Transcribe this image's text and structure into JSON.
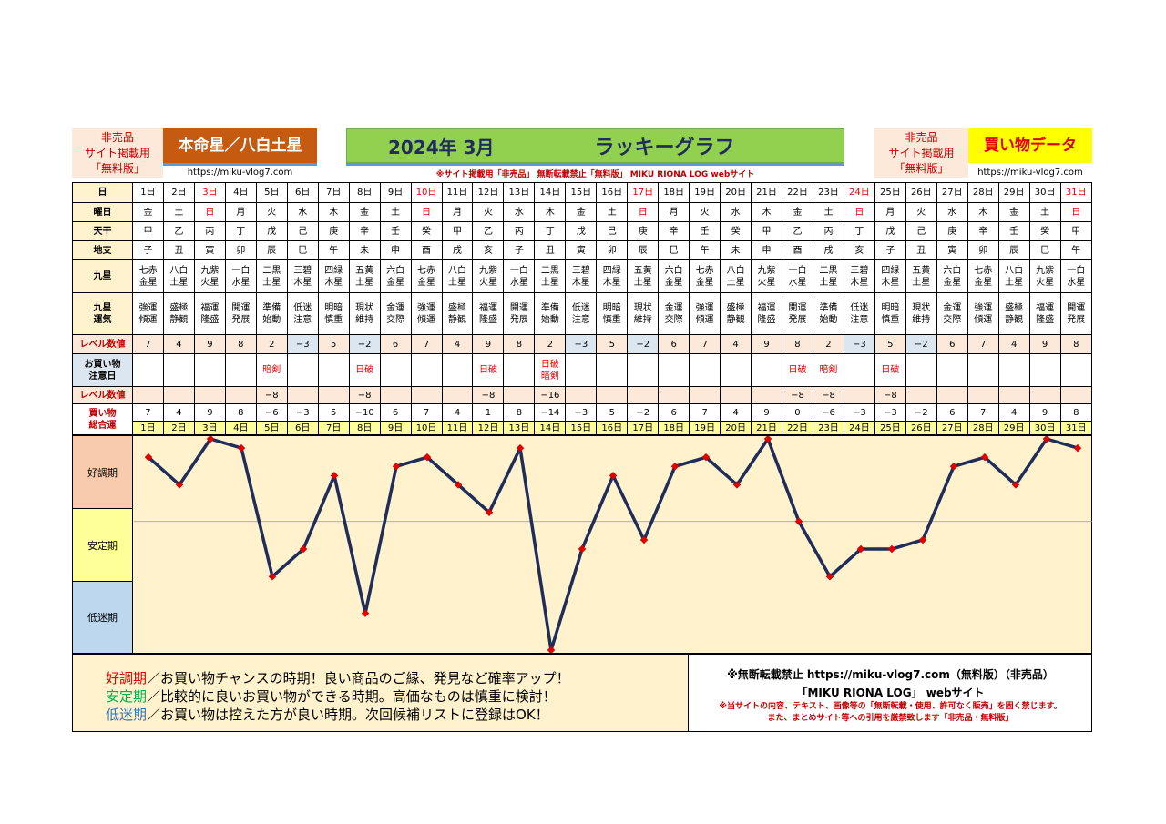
{
  "header": {
    "not_for_sale_left": [
      "非売品",
      "サイト掲載用",
      "「無料版」"
    ],
    "honmei_label": "本命星／八白土星",
    "url_left": "https://miku-vlog7.com",
    "year_month": "2024年 3月",
    "lucky_graph": "ラッキーグラフ",
    "notice": "※サイト掲載用「非売品」 無断転載禁止「無料版」 MIKU RIONA LOG webサイト",
    "not_for_sale_right": [
      "非売品",
      "サイト掲載用",
      "「無料版」"
    ],
    "shopping_data": "買い物データ",
    "url_right": "https://miku-vlog7.com"
  },
  "row_labels": {
    "day": "日",
    "weekday": "曜日",
    "tenkan": "天干",
    "chishi": "地支",
    "kyusei": "九星",
    "kyusei_unki": [
      "九星",
      "運気"
    ],
    "level": "レベル数値",
    "shopping_caution": [
      "お買い物",
      "注意日"
    ],
    "level2": "レベル数値",
    "total": [
      "買い物",
      "総合運"
    ]
  },
  "days": [
    "1日",
    "2日",
    "3日",
    "4日",
    "5日",
    "6日",
    "7日",
    "8日",
    "9日",
    "10日",
    "11日",
    "12日",
    "13日",
    "14日",
    "15日",
    "16日",
    "17日",
    "18日",
    "19日",
    "20日",
    "21日",
    "22日",
    "23日",
    "24日",
    "25日",
    "26日",
    "27日",
    "28日",
    "29日",
    "30日",
    "31日"
  ],
  "weekdays": [
    "金",
    "土",
    "日",
    "月",
    "火",
    "水",
    "木",
    "金",
    "土",
    "日",
    "月",
    "火",
    "水",
    "木",
    "金",
    "土",
    "日",
    "月",
    "火",
    "水",
    "木",
    "金",
    "土",
    "日",
    "月",
    "火",
    "水",
    "木",
    "金",
    "土",
    "日"
  ],
  "tenkan": [
    "甲",
    "乙",
    "丙",
    "丁",
    "戊",
    "己",
    "庚",
    "辛",
    "壬",
    "癸",
    "甲",
    "乙",
    "丙",
    "丁",
    "戊",
    "己",
    "庚",
    "辛",
    "壬",
    "癸",
    "甲",
    "乙",
    "丙",
    "丁",
    "戊",
    "己",
    "庚",
    "辛",
    "壬",
    "癸",
    "甲"
  ],
  "chishi": [
    "子",
    "丑",
    "寅",
    "卯",
    "辰",
    "巳",
    "午",
    "未",
    "申",
    "酉",
    "戌",
    "亥",
    "子",
    "丑",
    "寅",
    "卯",
    "辰",
    "巳",
    "午",
    "未",
    "申",
    "酉",
    "戌",
    "亥",
    "子",
    "丑",
    "寅",
    "卯",
    "辰",
    "巳",
    "午"
  ],
  "kyusei": [
    [
      "七赤",
      "金星"
    ],
    [
      "八白",
      "土星"
    ],
    [
      "九紫",
      "火星"
    ],
    [
      "一白",
      "水星"
    ],
    [
      "二黒",
      "土星"
    ],
    [
      "三碧",
      "木星"
    ],
    [
      "四緑",
      "木星"
    ],
    [
      "五黄",
      "土星"
    ],
    [
      "六白",
      "金星"
    ],
    [
      "七赤",
      "金星"
    ],
    [
      "八白",
      "土星"
    ],
    [
      "九紫",
      "火星"
    ],
    [
      "一白",
      "水星"
    ],
    [
      "二黒",
      "土星"
    ],
    [
      "三碧",
      "木星"
    ],
    [
      "四緑",
      "木星"
    ],
    [
      "五黄",
      "土星"
    ],
    [
      "六白",
      "金星"
    ],
    [
      "七赤",
      "金星"
    ],
    [
      "八白",
      "土星"
    ],
    [
      "九紫",
      "火星"
    ],
    [
      "一白",
      "水星"
    ],
    [
      "二黒",
      "土星"
    ],
    [
      "三碧",
      "木星"
    ],
    [
      "四緑",
      "木星"
    ],
    [
      "五黄",
      "土星"
    ],
    [
      "六白",
      "金星"
    ],
    [
      "七赤",
      "金星"
    ],
    [
      "八白",
      "土星"
    ],
    [
      "九紫",
      "火星"
    ],
    [
      "一白",
      "水星"
    ]
  ],
  "unki": [
    [
      "強運",
      "傾運"
    ],
    [
      "盛極",
      "静観"
    ],
    [
      "福運",
      "隆盛"
    ],
    [
      "開運",
      "発展"
    ],
    [
      "準備",
      "始動"
    ],
    [
      "低迷",
      "注意"
    ],
    [
      "明暗",
      "慎重"
    ],
    [
      "現状",
      "維持"
    ],
    [
      "金運",
      "交際"
    ],
    [
      "強運",
      "傾運"
    ],
    [
      "盛極",
      "静観"
    ],
    [
      "福運",
      "隆盛"
    ],
    [
      "開運",
      "発展"
    ],
    [
      "準備",
      "始動"
    ],
    [
      "低迷",
      "注意"
    ],
    [
      "明暗",
      "慎重"
    ],
    [
      "現状",
      "維持"
    ],
    [
      "金運",
      "交際"
    ],
    [
      "強運",
      "傾運"
    ],
    [
      "盛極",
      "静観"
    ],
    [
      "福運",
      "隆盛"
    ],
    [
      "開運",
      "発展"
    ],
    [
      "準備",
      "始動"
    ],
    [
      "低迷",
      "注意"
    ],
    [
      "明暗",
      "慎重"
    ],
    [
      "現状",
      "維持"
    ],
    [
      "金運",
      "交際"
    ],
    [
      "強運",
      "傾運"
    ],
    [
      "盛極",
      "静観"
    ],
    [
      "福運",
      "隆盛"
    ],
    [
      "開運",
      "発展"
    ]
  ],
  "levels": [
    "7",
    "4",
    "9",
    "8",
    "2",
    "−3",
    "5",
    "−2",
    "6",
    "7",
    "4",
    "9",
    "8",
    "2",
    "−3",
    "5",
    "−2",
    "6",
    "7",
    "4",
    "9",
    "8",
    "2",
    "−3",
    "5",
    "−2",
    "6",
    "7",
    "4",
    "9",
    "8"
  ],
  "caution": [
    [],
    [],
    [],
    [],
    [
      "暗剣"
    ],
    [],
    [],
    [
      "日破"
    ],
    [],
    [],
    [],
    [
      "日破"
    ],
    [],
    [
      "日破",
      "暗剣"
    ],
    [],
    [],
    [],
    [],
    [],
    [],
    [],
    [
      "日破"
    ],
    [
      "暗剣"
    ],
    [],
    [
      "日破"
    ],
    [],
    [],
    [],
    [],
    [],
    []
  ],
  "caution_levels": [
    "",
    "",
    "",
    "",
    "−8",
    "",
    "",
    "−8",
    "",
    "",
    "",
    "−8",
    "",
    "−16",
    "",
    "",
    "",
    "",
    "",
    "",
    "",
    "−8",
    "−8",
    "",
    "−8",
    "",
    "",
    "",
    "",
    "",
    ""
  ],
  "totals": [
    "7",
    "4",
    "9",
    "8",
    "−6",
    "−3",
    "5",
    "−10",
    "6",
    "7",
    "4",
    "1",
    "8",
    "−14",
    "−3",
    "5",
    "−2",
    "6",
    "7",
    "4",
    "9",
    "0",
    "−6",
    "−3",
    "−3",
    "−2",
    "6",
    "7",
    "4",
    "9",
    "8"
  ],
  "zones": {
    "good": "好調期",
    "stable": "安定期",
    "low": "低迷期"
  },
  "chart_data": {
    "type": "line",
    "x": [
      "1日",
      "2日",
      "3日",
      "4日",
      "5日",
      "6日",
      "7日",
      "8日",
      "9日",
      "10日",
      "11日",
      "12日",
      "13日",
      "14日",
      "15日",
      "16日",
      "17日",
      "18日",
      "19日",
      "20日",
      "21日",
      "22日",
      "23日",
      "24日",
      "25日",
      "26日",
      "27日",
      "28日",
      "29日",
      "30日",
      "31日"
    ],
    "values": [
      7,
      4,
      9,
      8,
      -6,
      -3,
      5,
      -10,
      6,
      7,
      4,
      1,
      8,
      -14,
      -3,
      5,
      -2,
      6,
      7,
      4,
      9,
      0,
      -6,
      -3,
      -3,
      -2,
      6,
      7,
      4,
      9,
      8
    ],
    "ylim": [
      -14,
      9
    ],
    "line_color": "#1f2d5a",
    "marker_color": "#e00000"
  },
  "legend": {
    "good_term": "好調期",
    "good_text": "／お買い物チャンスの時期！良い商品のご縁、発見など確率アップ！",
    "stable_term": "安定期",
    "stable_text": "／比較的に良いお買い物ができる時期。高価なものは慎重に検討！",
    "low_term": "低迷期",
    "low_text": "／お買い物は控えた方が良い時期。次回候補リストに登録はOK！",
    "copy_line": "※無断転載禁止 https://miku-vlog7.com（無料版）（非売品）",
    "site_line": "「MIKU RIONA LOG」 webサイト",
    "warning1": "※当サイトの内容、テキスト、画像等の「無断転載・使用、許可なく販売」を固く禁じます。",
    "warning2": "また、まとめサイト等への引用を厳禁致します「非売品・無料版」"
  },
  "colors": {
    "good": "#f8cbad",
    "stable": "#ffff99",
    "low": "#bdd7ee",
    "accent_green": "#70ad47",
    "honmei_bg": "#c55a11",
    "red": "#e00000"
  }
}
